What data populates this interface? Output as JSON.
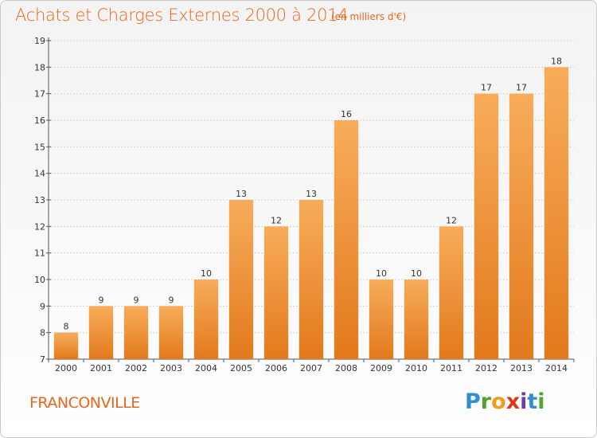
{
  "header": {
    "title": "Achats et Charges Externes 2000 à 2014",
    "unit": "(en milliers d'€)"
  },
  "footer": {
    "city": "FRANCONVILLE",
    "logo": "Proxiti"
  },
  "colors": {
    "accent": "#e9661d",
    "bar_top": "#f6a44e",
    "bar_bottom": "#e07b1e",
    "grid": "#cccccc"
  },
  "chart_data": {
    "type": "bar",
    "title": "Achats et Charges Externes 2000 à 2014",
    "subtitle": "(en milliers d'€)",
    "xlabel": "",
    "ylabel": "",
    "categories": [
      "2000",
      "2001",
      "2002",
      "2003",
      "2004",
      "2005",
      "2006",
      "2007",
      "2008",
      "2009",
      "2010",
      "2011",
      "2012",
      "2013",
      "2014"
    ],
    "values": [
      8,
      9,
      9,
      9,
      10,
      13,
      12,
      13,
      16,
      10,
      10,
      12,
      17,
      17,
      18
    ],
    "ylim": [
      7,
      19
    ],
    "yticks": [
      7,
      8,
      9,
      10,
      11,
      12,
      13,
      14,
      15,
      16,
      17,
      18,
      19
    ],
    "grid": true,
    "legend": "none"
  }
}
